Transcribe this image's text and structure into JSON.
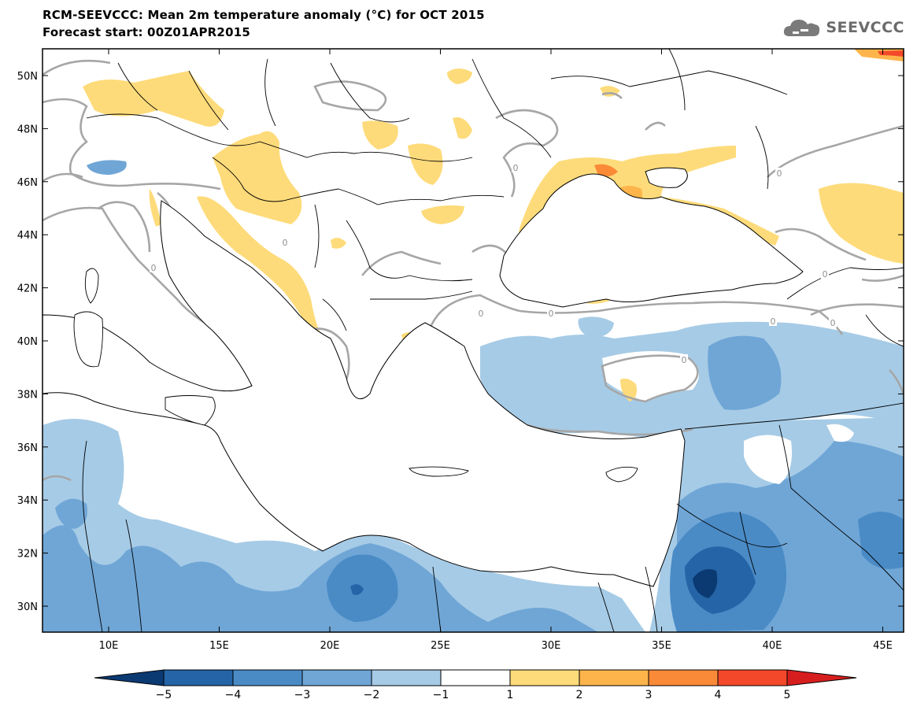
{
  "title": {
    "line1": "RCM-SEEVCCC: Mean 2m temperature anomaly (°C) for OCT 2015",
    "line2": "Forecast start: 00Z01APR2015"
  },
  "logo": {
    "text": "SEEVCCC",
    "icon": "cloud-icon"
  },
  "map": {
    "lat_labels": [
      "50N",
      "48N",
      "46N",
      "44N",
      "42N",
      "40N",
      "38N",
      "36N",
      "34N",
      "32N",
      "30N"
    ],
    "lon_labels": [
      "10E",
      "15E",
      "20E",
      "25E",
      "30E",
      "35E",
      "40E",
      "45E"
    ],
    "contour_label": "0"
  },
  "colorbar": {
    "labels": [
      "−5",
      "−4",
      "−3",
      "−2",
      "−1",
      "1",
      "2",
      "3",
      "4",
      "5"
    ],
    "colors": [
      "#0b3a73",
      "#2564a6",
      "#4a8bc6",
      "#6fa6d6",
      "#a6cbe6",
      "#ffffff",
      "#fedb7a",
      "#fdb54b",
      "#fb8a38",
      "#f3492a",
      "#d71e1e"
    ]
  }
}
